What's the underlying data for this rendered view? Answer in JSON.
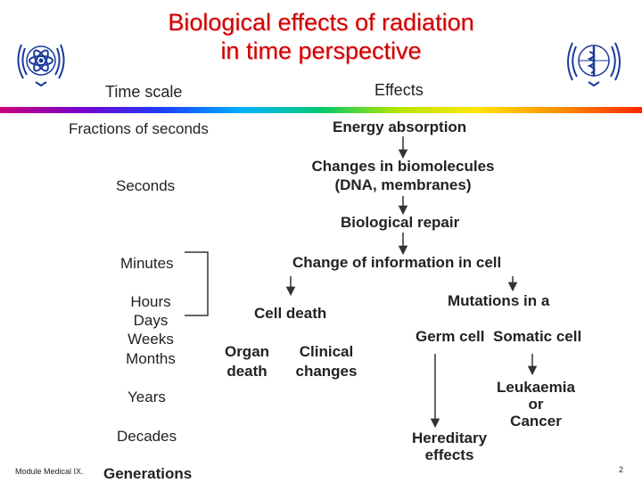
{
  "title": {
    "line1": "Biological effects of radiation",
    "line2": "in time perspective"
  },
  "headers": {
    "time_scale": "Time scale",
    "effects": "Effects"
  },
  "time_scale": {
    "fractions": "Fractions of seconds",
    "seconds": "Seconds",
    "minutes": "Minutes",
    "hours": "Hours",
    "days": "Days",
    "weeks": "Weeks",
    "months": "Months",
    "years": "Years",
    "decades": "Decades",
    "generations": "Generations"
  },
  "effects": {
    "energy_absorption": "Energy absorption",
    "changes_line1": "Changes in biomolecules",
    "changes_line2": "(DNA, membranes)",
    "biological_repair": "Biological repair",
    "change_of_information": "Change of information in cell",
    "cell_death": "Cell death",
    "organ_line1": "Organ",
    "organ_line2": "death",
    "clinical_line1": "Clinical",
    "clinical_line2": "changes",
    "mutations": "Mutations in a",
    "germ_cell": "Germ cell",
    "somatic_cell": "Somatic cell",
    "leukaemia": "Leukaemia",
    "or": "or",
    "cancer": "Cancer",
    "hereditary_line1": "Hereditary",
    "hereditary_line2": "effects"
  },
  "footer": {
    "module": "Module Medical IX.",
    "page_number": "2"
  },
  "icons": {
    "left": "atom-emblem-icon",
    "right": "who-emblem-icon"
  },
  "colors": {
    "title": "#cc0000",
    "emblem": "#1a3a9a",
    "arrows": "#333333"
  }
}
